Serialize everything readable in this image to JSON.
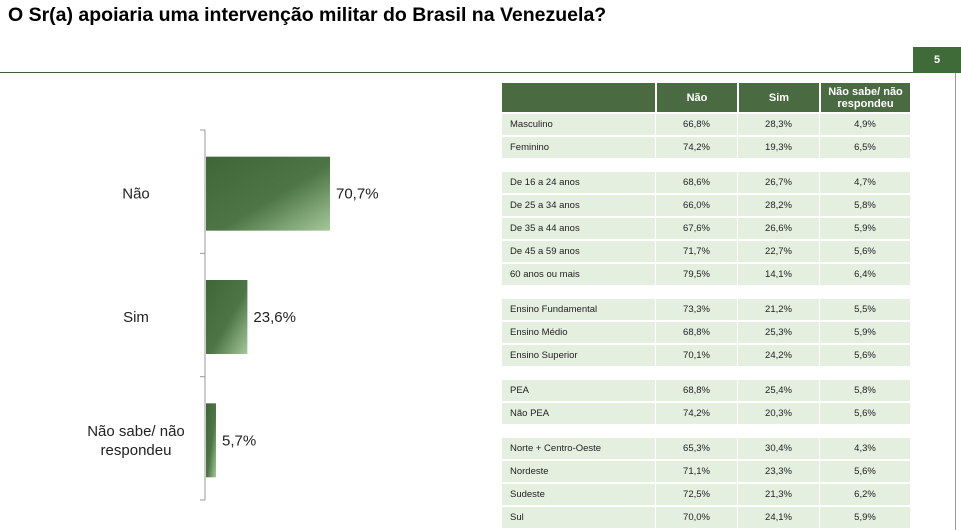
{
  "header": {
    "title": "O Sr(a) apoiaria uma intervenção militar do Brasil na Venezuela?",
    "page_number": "5"
  },
  "colors": {
    "accent": "#4a6b41",
    "row_bg": "#e4efe0",
    "bar_dark": "#3e6636",
    "bar_light": "#a6c89a"
  },
  "chart_data": {
    "type": "bar",
    "orientation": "horizontal",
    "categories": [
      "Não",
      "Sim",
      "Não sabe/ não respondeu"
    ],
    "values": [
      70.7,
      23.6,
      5.7
    ],
    "value_labels": [
      "70,7%",
      "23,6%",
      "5,7%"
    ],
    "unit": "%"
  },
  "table": {
    "columns": [
      "Não",
      "Sim",
      "Não sabe/ não respondeu"
    ],
    "groups": [
      [
        {
          "label": "Masculino",
          "values": [
            "66,8%",
            "28,3%",
            "4,9%"
          ]
        },
        {
          "label": "Feminino",
          "values": [
            "74,2%",
            "19,3%",
            "6,5%"
          ]
        }
      ],
      [
        {
          "label": "De 16 a 24 anos",
          "values": [
            "68,6%",
            "26,7%",
            "4,7%"
          ]
        },
        {
          "label": "De 25 a 34 anos",
          "values": [
            "66,0%",
            "28,2%",
            "5,8%"
          ]
        },
        {
          "label": "De 35 a 44 anos",
          "values": [
            "67,6%",
            "26,6%",
            "5,9%"
          ]
        },
        {
          "label": "De 45 a 59 anos",
          "values": [
            "71,7%",
            "22,7%",
            "5,6%"
          ]
        },
        {
          "label": "60 anos ou mais",
          "values": [
            "79,5%",
            "14,1%",
            "6,4%"
          ]
        }
      ],
      [
        {
          "label": "Ensino Fundamental",
          "values": [
            "73,3%",
            "21,2%",
            "5,5%"
          ]
        },
        {
          "label": "Ensino Médio",
          "values": [
            "68,8%",
            "25,3%",
            "5,9%"
          ]
        },
        {
          "label": "Ensino Superior",
          "values": [
            "70,1%",
            "24,2%",
            "5,6%"
          ]
        }
      ],
      [
        {
          "label": "PEA",
          "values": [
            "68,8%",
            "25,4%",
            "5,8%"
          ]
        },
        {
          "label": "Não PEA",
          "values": [
            "74,2%",
            "20,3%",
            "5,6%"
          ]
        }
      ],
      [
        {
          "label": "Norte + Centro-Oeste",
          "values": [
            "65,3%",
            "30,4%",
            "4,3%"
          ]
        },
        {
          "label": "Nordeste",
          "values": [
            "71,1%",
            "23,3%",
            "5,6%"
          ]
        },
        {
          "label": "Sudeste",
          "values": [
            "72,5%",
            "21,3%",
            "6,2%"
          ]
        },
        {
          "label": "Sul",
          "values": [
            "70,0%",
            "24,1%",
            "5,9%"
          ]
        }
      ]
    ]
  }
}
